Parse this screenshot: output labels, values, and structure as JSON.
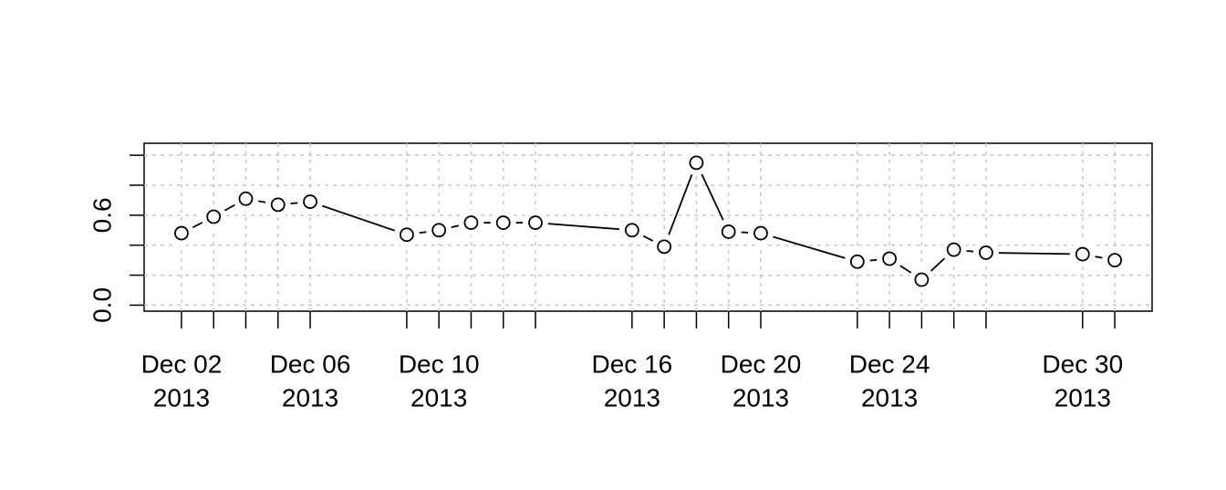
{
  "chart_data": {
    "type": "line",
    "x": [
      "2013-12-02",
      "2013-12-03",
      "2013-12-04",
      "2013-12-05",
      "2013-12-06",
      "2013-12-09",
      "2013-12-10",
      "2013-12-11",
      "2013-12-12",
      "2013-12-13",
      "2013-12-16",
      "2013-12-17",
      "2013-12-18",
      "2013-12-19",
      "2013-12-20",
      "2013-12-23",
      "2013-12-24",
      "2013-12-25",
      "2013-12-26",
      "2013-12-27",
      "2013-12-30",
      "2013-12-31"
    ],
    "values": [
      0.48,
      0.59,
      0.71,
      0.67,
      0.69,
      0.47,
      0.5,
      0.55,
      0.55,
      0.55,
      0.5,
      0.39,
      0.95,
      0.49,
      0.48,
      0.29,
      0.31,
      0.17,
      0.37,
      0.35,
      0.34,
      0.3
    ],
    "color": "#000000",
    "ylim": [
      -0.04,
      1.08
    ],
    "yticks": [
      {
        "value": 0,
        "label": "0.0"
      },
      {
        "value": 0.6,
        "label": "0.6"
      }
    ],
    "yminor_ticks": [
      0.2,
      0.4,
      0.8,
      1.0
    ],
    "xticks": [
      {
        "value": "2013-12-02",
        "label": [
          "Dec 02",
          "2013"
        ]
      },
      {
        "value": "2013-12-06",
        "label": [
          "Dec 06",
          "2013"
        ]
      },
      {
        "value": "2013-12-10",
        "label": [
          "Dec 10",
          "2013"
        ]
      },
      {
        "value": "2013-12-16",
        "label": [
          "Dec 16",
          "2013"
        ]
      },
      {
        "value": "2013-12-20",
        "label": [
          "Dec 20",
          "2013"
        ]
      },
      {
        "value": "2013-12-24",
        "label": [
          "Dec 24",
          "2013"
        ]
      },
      {
        "value": "2013-12-30",
        "label": [
          "Dec 30",
          "2013"
        ]
      }
    ],
    "grid": true
  }
}
